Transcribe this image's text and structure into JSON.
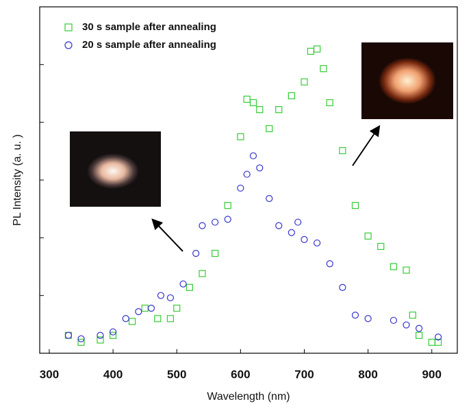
{
  "chart_data": {
    "type": "scatter",
    "x_label": "Wavelength (nm)",
    "y_label": "PL Intensity (a. u. )",
    "xlim": [
      285,
      940
    ],
    "xticks": [
      300,
      400,
      500,
      600,
      700,
      800,
      900
    ],
    "ylim": [
      0,
      6
    ],
    "yticks": [
      1,
      2,
      3,
      4,
      5
    ],
    "legend": "upper left",
    "series": [
      {
        "name": "30 s sample after annealing",
        "color": "#33cc33",
        "marker": "square",
        "x": [
          330,
          350,
          380,
          400,
          430,
          450,
          470,
          490,
          500,
          520,
          540,
          560,
          580,
          600,
          610,
          620,
          630,
          645,
          660,
          680,
          700,
          710,
          720,
          730,
          740,
          760,
          780,
          800,
          820,
          840,
          860,
          870,
          880,
          900,
          910
        ],
        "values": [
          0.31,
          0.19,
          0.23,
          0.31,
          0.55,
          0.78,
          0.6,
          0.6,
          0.78,
          1.14,
          1.38,
          1.73,
          2.56,
          3.75,
          4.4,
          4.34,
          4.22,
          3.89,
          4.22,
          4.46,
          4.7,
          5.23,
          5.27,
          4.93,
          4.34,
          3.51,
          2.56,
          2.03,
          1.85,
          1.5,
          1.44,
          0.66,
          0.31,
          0.19,
          0.19
        ]
      },
      {
        "name": "20 s sample after annealing",
        "color": "#3333cc",
        "marker": "circle",
        "x": [
          330,
          350,
          380,
          400,
          420,
          440,
          460,
          475,
          490,
          510,
          530,
          540,
          560,
          580,
          600,
          610,
          620,
          630,
          645,
          660,
          680,
          690,
          700,
          720,
          740,
          760,
          780,
          800,
          840,
          860,
          880,
          910
        ],
        "values": [
          0.31,
          0.25,
          0.31,
          0.37,
          0.6,
          0.72,
          0.78,
          1.0,
          0.96,
          1.2,
          1.73,
          2.21,
          2.27,
          2.32,
          2.86,
          3.1,
          3.42,
          3.21,
          2.68,
          2.21,
          2.09,
          2.27,
          1.97,
          1.91,
          1.55,
          1.14,
          0.66,
          0.6,
          0.57,
          0.49,
          0.43,
          0.28
        ]
      }
    ]
  }
}
